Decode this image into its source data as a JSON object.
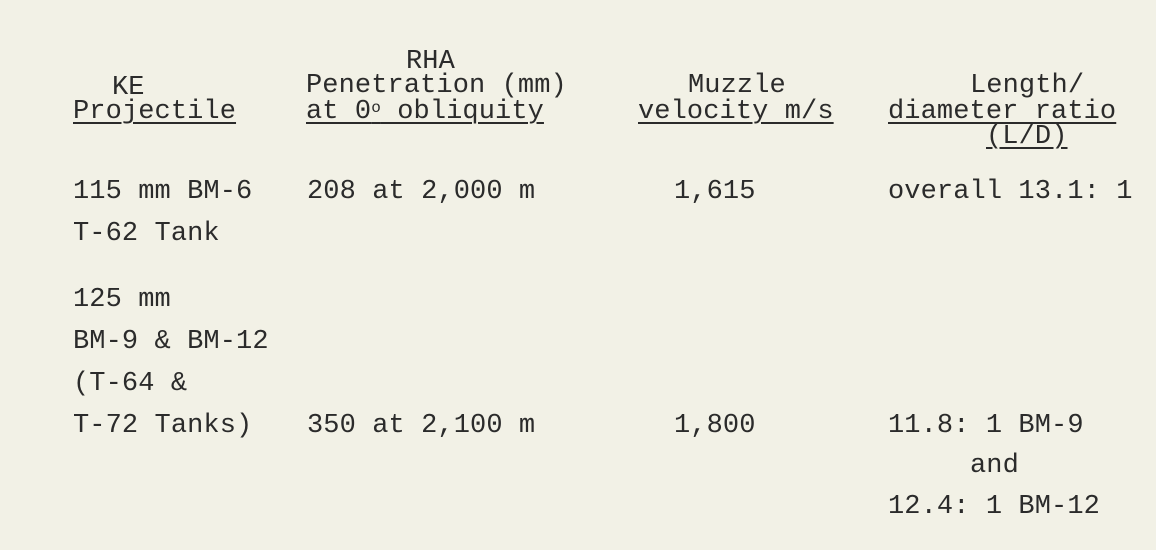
{
  "header": {
    "col1": {
      "line1": "KE",
      "line2": "Projectile"
    },
    "col2": {
      "line0": "RHA",
      "line1": "Penetration (mm)",
      "line2_prefix": "at 0",
      "degree": "o",
      "line2_suffix": " obliquity"
    },
    "col3": {
      "line1": "Muzzle",
      "line2": "velocity m/s"
    },
    "col4": {
      "line1": "Length/",
      "line2": "diameter ratio",
      "line3": "(L/D)"
    }
  },
  "rows": [
    {
      "projectile": [
        "115 mm BM-6",
        "T-62 Tank"
      ],
      "penetration": "208 at 2,000 m",
      "velocity": "1,615",
      "ld_ratio": [
        "overall 13.1: 1"
      ]
    },
    {
      "projectile": [
        "125 mm",
        "BM-9 & BM-12",
        "(T-64 &",
        "T-72 Tanks)"
      ],
      "penetration": "350 at 2,100 m",
      "velocity": "1,800",
      "ld_ratio": [
        "11.8: 1 BM-9",
        "and",
        "12.4: 1 BM-12"
      ]
    }
  ]
}
